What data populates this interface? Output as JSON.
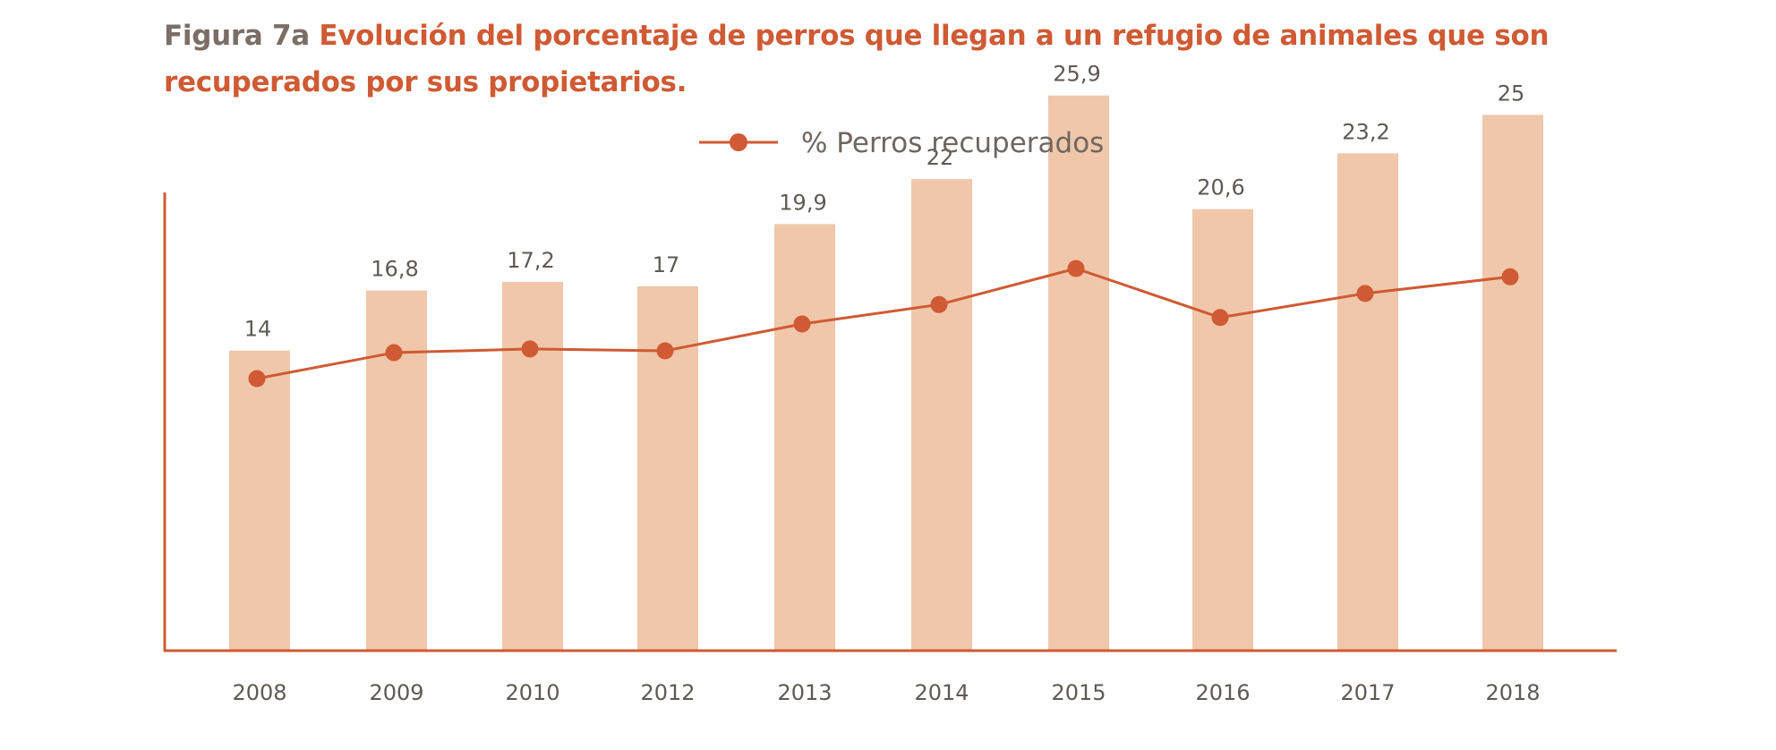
{
  "header": {
    "figure_prefix": "Figura 7a",
    "title_text": "Evolución del porcentaje de perros que llegan a un refugio de animales que son recuperados por sus propietarios."
  },
  "colors": {
    "accent": "#cf5a33",
    "bar": "#f0c7aa",
    "prefix": "#7a6e67",
    "text": "#5f5954"
  },
  "chart_data": {
    "type": "bar",
    "title": "Evolución del porcentaje de perros que llegan a un refugio de animales que son recuperados por sus propietarios.",
    "categories": [
      "2008",
      "2009",
      "2010",
      "2012",
      "2013",
      "2014",
      "2015",
      "2016",
      "2017",
      "2018"
    ],
    "series": [
      {
        "name": "% Perros recuperados",
        "type": "bar",
        "values": [
          14,
          16.8,
          17.2,
          17,
          19.9,
          22,
          25.9,
          20.6,
          23.2,
          25
        ],
        "labels": [
          "14",
          "16,8",
          "17,2",
          "17",
          "19,9",
          "22",
          "25,9",
          "20,6",
          "23,2",
          "25"
        ]
      },
      {
        "name": "% Perros recuperados",
        "type": "line",
        "values": [
          14,
          16.8,
          17.2,
          17,
          19.9,
          22,
          25.9,
          20.6,
          23.2,
          25
        ]
      }
    ],
    "legend": {
      "label": "% Perros recuperados",
      "position": "top-center"
    },
    "xlabel": "",
    "ylabel": "",
    "ylim": [
      0,
      30
    ],
    "grid": false
  }
}
